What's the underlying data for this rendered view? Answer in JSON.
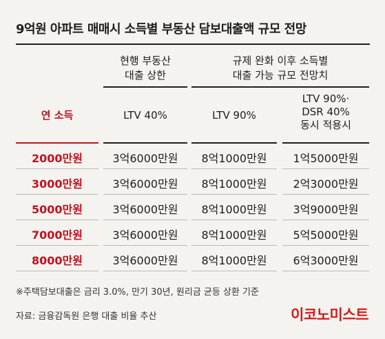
{
  "title": "9억원 아파트 매매시 소득별 부동산 담보대출액 규모 전망",
  "headers": {
    "current": [
      "현행 부동산",
      "대출 상한"
    ],
    "after": [
      "규제 완화 이후 소득별",
      "대출 가능 규모 전망치"
    ]
  },
  "subheaders": {
    "income": "연 소득",
    "current": "LTV 40%",
    "ltv": "LTV 90%",
    "dsr": [
      "LTV 90%·",
      "DSR 40%",
      "동시 적용시"
    ]
  },
  "rows": [
    {
      "income": "2000만원",
      "current": "3억6000만원",
      "ltv90": "8억1000만원",
      "dsr": "1억5000만원"
    },
    {
      "income": "3000만원",
      "current": "3억6000만원",
      "ltv90": "8억1000만원",
      "dsr": "2억3000만원"
    },
    {
      "income": "5000만원",
      "current": "3억6000만원",
      "ltv90": "8억1000만원",
      "dsr": "3억9000만원"
    },
    {
      "income": "7000만원",
      "current": "3억6000만원",
      "ltv90": "8억1000만원",
      "dsr": "5억5000만원"
    },
    {
      "income": "8000만원",
      "current": "3억6000만원",
      "ltv90": "8억1000만원",
      "dsr": "6억3000만원"
    }
  ],
  "note": "※주택담보대출은 금리 3.0%, 만기 30년, 원리금 균등 상환 기준",
  "source": "자료: 금융감독원 은행 대출 비율 추산",
  "logo": "이코노미스트",
  "colors": {
    "accent": "#c1121f",
    "logo": "#d51a1a",
    "background": "#f4f3ef"
  }
}
